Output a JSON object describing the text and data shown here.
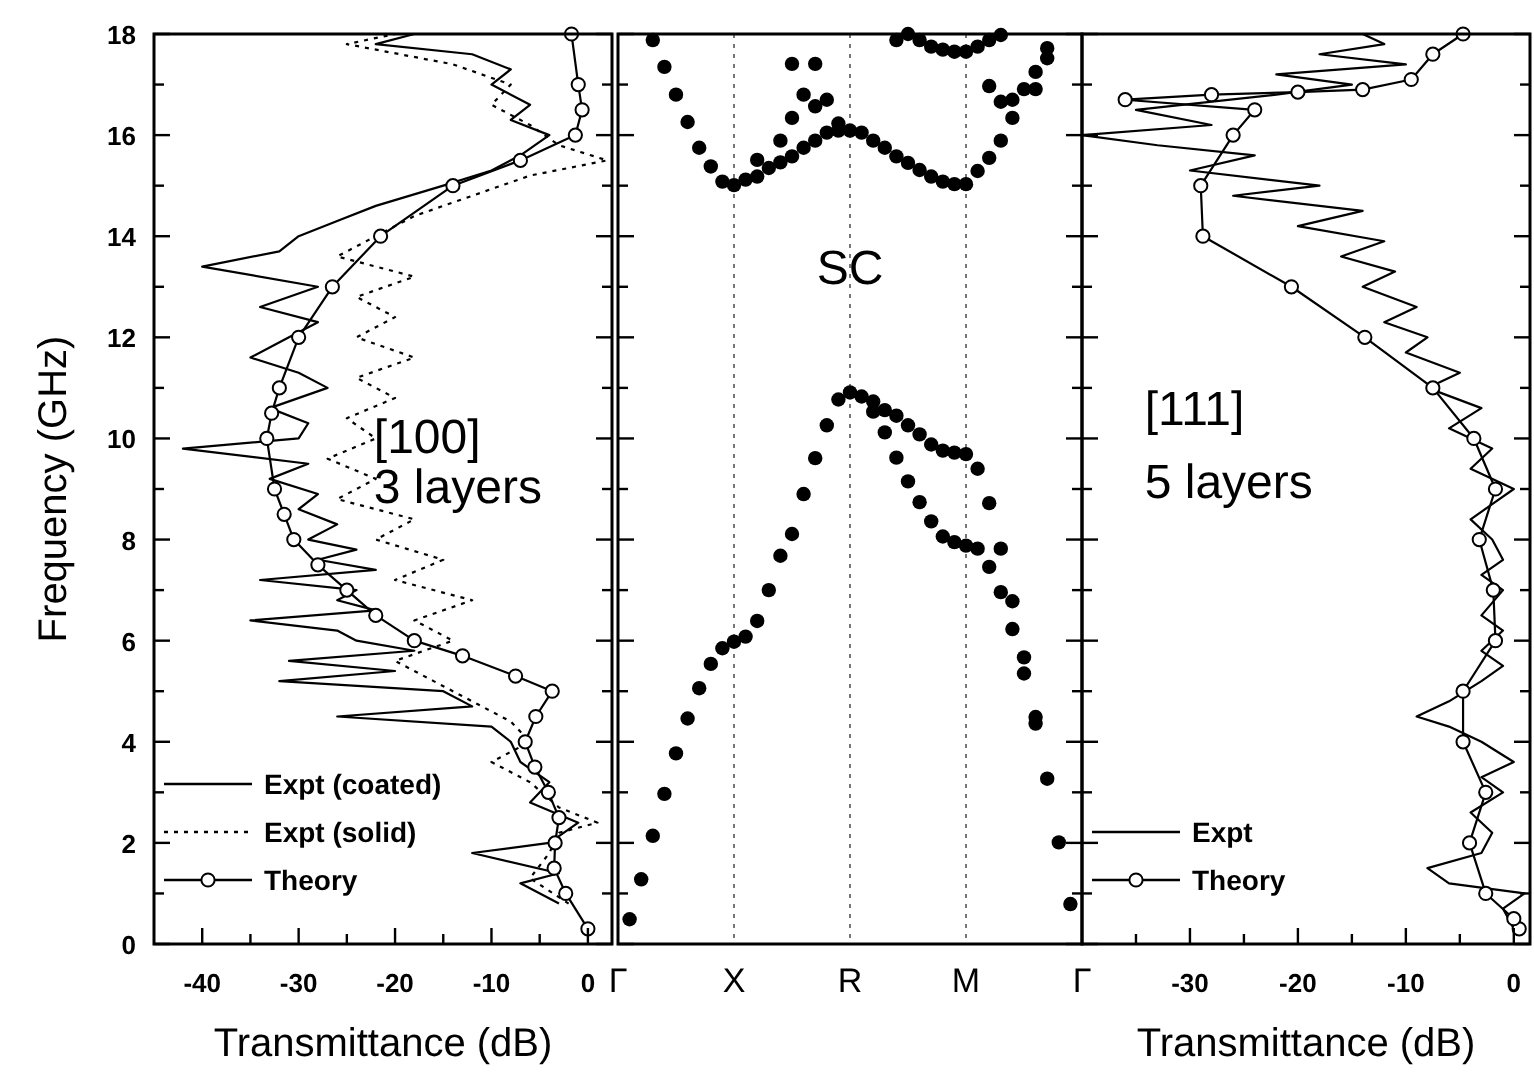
{
  "chart_data": [
    {
      "type": "line",
      "xlabel": "Transmittance (dB)",
      "ylabel": "Frequency (GHz)",
      "xlim": [
        -45,
        2.5
      ],
      "ylim": [
        0,
        18
      ],
      "xticks": [
        -40,
        {
          "value": -35,
          "label": null
        },
        -30,
        {
          "value": -25,
          "label": null
        },
        -20,
        {
          "value": -15,
          "label": null
        },
        -10,
        {
          "value": -5,
          "label": null
        },
        0
      ],
      "yticks": [
        0,
        {
          "value": 1,
          "label": null
        },
        2,
        {
          "value": 3,
          "label": null
        },
        4,
        {
          "value": 5,
          "label": null
        },
        6,
        {
          "value": 7,
          "label": null
        },
        8,
        {
          "value": 9,
          "label": null
        },
        10,
        {
          "value": 11,
          "label": null
        },
        12,
        {
          "value": 13,
          "label": null
        },
        14,
        {
          "value": 15,
          "label": null
        },
        16,
        {
          "value": 17,
          "label": null
        },
        18
      ],
      "annotations": [
        "[100]",
        "3 layers"
      ],
      "legend": "bottom left",
      "series": [
        {
          "name": "Expt (coated)",
          "color": "#000000",
          "line_style": "solid",
          "x": [
            -3,
            -7,
            -3,
            -12,
            -4,
            -1,
            -6,
            -4,
            -7,
            -8,
            -10,
            -26,
            -12,
            -15,
            -32,
            -20,
            -31,
            -18,
            -24,
            -26,
            -35,
            -22,
            -26,
            -24,
            -34,
            -22,
            -28,
            -24,
            -29,
            -26,
            -30,
            -28,
            -33,
            -29,
            -42,
            -30,
            -29,
            -33,
            -27,
            -30,
            -35,
            -31,
            -28,
            -34,
            -28,
            -40,
            -32,
            -30,
            -26,
            -22,
            -15,
            -10,
            -7,
            -4,
            -8,
            -6,
            -10,
            -8,
            -12,
            -22,
            -18
          ],
          "values": [
            0.8,
            1.2,
            1.4,
            1.8,
            2.0,
            2.4,
            2.8,
            3.2,
            3.6,
            4.0,
            4.3,
            4.5,
            4.7,
            5.0,
            5.2,
            5.4,
            5.6,
            5.8,
            6.0,
            6.2,
            6.4,
            6.6,
            6.8,
            7.0,
            7.2,
            7.4,
            7.6,
            7.8,
            8.0,
            8.3,
            8.6,
            8.9,
            9.2,
            9.5,
            9.8,
            10.0,
            10.3,
            10.6,
            11.0,
            11.3,
            11.6,
            12.0,
            12.3,
            12.6,
            13.0,
            13.4,
            13.7,
            14.0,
            14.3,
            14.6,
            15.0,
            15.3,
            15.6,
            16.0,
            16.3,
            16.6,
            17.0,
            17.3,
            17.6,
            17.8,
            18.0
          ]
        },
        {
          "name": "Expt (solid)",
          "color": "#000000",
          "line_style": "dotted",
          "x": [
            -2,
            -6,
            -4,
            -3,
            1,
            -3,
            -6,
            -10,
            -6,
            -8,
            -12,
            -16,
            -20,
            -14,
            -18,
            -12,
            -20,
            -15,
            -22,
            -18,
            -26,
            -22,
            -27,
            -22,
            -25,
            -20,
            -24,
            -18,
            -24,
            -20,
            -24,
            -18,
            -26,
            -22,
            -18,
            -12,
            -6,
            2,
            -3,
            -6,
            -10,
            -8,
            -14,
            -25,
            -20
          ],
          "values": [
            0.8,
            1.3,
            1.8,
            2.2,
            2.4,
            2.7,
            3.2,
            3.6,
            4.0,
            4.4,
            4.8,
            5.2,
            5.6,
            6.0,
            6.4,
            6.8,
            7.2,
            7.6,
            8.0,
            8.4,
            8.8,
            9.2,
            9.6,
            10.0,
            10.4,
            10.8,
            11.2,
            11.6,
            12.0,
            12.4,
            12.8,
            13.2,
            13.6,
            14.0,
            14.4,
            14.8,
            15.2,
            15.5,
            15.8,
            16.2,
            16.6,
            17.0,
            17.4,
            17.8,
            18.0
          ]
        },
        {
          "name": "Theory",
          "color": "#000000",
          "line_style": "solid",
          "marker": "circle",
          "x": [
            0,
            -2.3,
            -3.5,
            -3.4,
            -3,
            -4.1,
            -5.5,
            -6.5,
            -5.4,
            -3.7,
            -7.5,
            -13,
            -18,
            -22,
            -25,
            -28,
            -30.5,
            -31.5,
            -32.5,
            -33.3,
            -32.8,
            -32,
            -30,
            -26.5,
            -21.5,
            -14,
            -7,
            -1.3,
            -0.6,
            -1,
            -1.7
          ],
          "values": [
            0.3,
            1,
            1.5,
            2,
            2.5,
            3,
            3.5,
            4,
            4.5,
            5,
            5.3,
            5.7,
            6,
            6.5,
            7,
            7.5,
            8,
            8.5,
            9,
            10,
            10.5,
            11,
            12,
            13,
            14,
            15,
            15.5,
            16,
            16.5,
            17,
            18
          ]
        }
      ]
    },
    {
      "type": "scatter",
      "ylim": [
        0,
        18
      ],
      "tick_labels": "x",
      "categories": [
        "Γ",
        null,
        null,
        null,
        null,
        null,
        null,
        null,
        null,
        null,
        "X",
        null,
        null,
        null,
        null,
        null,
        null,
        null,
        null,
        null,
        "R",
        null,
        null,
        null,
        null,
        null,
        null,
        null,
        null,
        null,
        "M",
        null,
        null,
        null,
        null,
        null,
        null,
        null,
        null,
        null,
        "Γ"
      ],
      "yticks": [
        0,
        {
          "value": 1,
          "label": null
        },
        2,
        {
          "value": 3,
          "label": null
        },
        4,
        {
          "value": 5,
          "label": null
        },
        6,
        {
          "value": 7,
          "label": null
        },
        8,
        {
          "value": 9,
          "label": null
        },
        10,
        {
          "value": 11,
          "label": null
        },
        12,
        {
          "value": 13,
          "label": null
        },
        14,
        {
          "value": 15,
          "label": null
        },
        16,
        {
          "value": 17,
          "label": null
        },
        18
      ],
      "annotations": [
        "SC"
      ],
      "ref_lines": [
        {
          "axis": "x",
          "value": "X",
          "color": "#555555",
          "line_style": "dotted"
        },
        {
          "axis": "x",
          "value": "R",
          "color": "#555555",
          "line_style": "dotted"
        },
        {
          "axis": "x",
          "value": "M",
          "color": "#555555",
          "line_style": "dotted"
        }
      ],
      "series": [
        {
          "color": "#000000",
          "values": [
            null,
            0.49,
            1.28,
            2.14,
            2.97,
            3.77,
            4.46,
            5.06,
            5.54,
            5.85,
            5.98,
            6.08,
            6.39,
            7.0,
            7.68,
            8.11,
            8.9,
            9.61,
            10.26,
            10.77,
            10.91,
            null,
            10.53,
            10.12,
            9.62,
            9.15,
            8.74,
            8.36,
            8.06,
            7.95,
            7.88,
            7.82,
            7.46,
            6.96,
            6.23,
            5.35,
            4.36,
            3.27,
            2.01,
            0.79,
            null
          ]
        },
        {
          "color": "#000000",
          "values": [
            null,
            null,
            null,
            null,
            null,
            null,
            null,
            null,
            null,
            null,
            null,
            null,
            null,
            null,
            null,
            null,
            null,
            null,
            null,
            null,
            null,
            10.83,
            10.73,
            10.56,
            10.45,
            10.26,
            10.08,
            9.88,
            9.76,
            9.72,
            9.69,
            9.4,
            8.72,
            7.82,
            6.78,
            5.67,
            4.49,
            null,
            null,
            null,
            null
          ]
        },
        {
          "color": "#000000",
          "values": [
            null,
            null,
            null,
            17.88,
            17.35,
            16.8,
            16.26,
            15.75,
            15.38,
            15.08,
            15.01,
            null,
            15.18,
            15.35,
            15.46,
            15.58,
            15.75,
            15.89,
            16.05,
            16.09,
            16.09,
            16.05,
            15.89,
            15.75,
            15.58,
            15.45,
            15.31,
            15.18,
            15.08,
            15.03,
            15.03,
            15.29,
            15.55,
            15.89,
            16.34,
            null,
            null,
            null,
            null,
            null,
            null
          ]
        },
        {
          "color": "#000000",
          "values": [
            null,
            null,
            null,
            null,
            null,
            null,
            null,
            null,
            null,
            null,
            null,
            15.12,
            15.51,
            null,
            15.89,
            16.34,
            16.8,
            17.41,
            null,
            null,
            null,
            null,
            null,
            null,
            null,
            null,
            null,
            null,
            null,
            null,
            null,
            null,
            null,
            null,
            null,
            null,
            null,
            null,
            null,
            null,
            null
          ]
        },
        {
          "color": "#000000",
          "values": [
            null,
            null,
            null,
            null,
            null,
            null,
            null,
            null,
            null,
            null,
            null,
            null,
            null,
            null,
            null,
            17.41,
            null,
            16.57,
            16.7,
            16.23,
            null,
            null,
            null,
            null,
            null,
            null,
            null,
            null,
            null,
            null,
            null,
            null,
            null,
            null,
            null,
            null,
            null,
            null,
            null,
            null,
            null
          ]
        },
        {
          "color": "#000000",
          "values": [
            null,
            null,
            null,
            null,
            null,
            null,
            null,
            null,
            null,
            null,
            null,
            null,
            null,
            null,
            null,
            null,
            null,
            null,
            null,
            null,
            null,
            null,
            null,
            null,
            17.88,
            18.0,
            17.88,
            17.75,
            17.69,
            17.65,
            17.65,
            17.75,
            17.88,
            17.98,
            null,
            null,
            null,
            null,
            null,
            null,
            null
          ]
        },
        {
          "color": "#000000",
          "values": [
            null,
            null,
            null,
            null,
            null,
            null,
            null,
            null,
            null,
            null,
            null,
            null,
            null,
            null,
            null,
            null,
            null,
            null,
            null,
            null,
            null,
            null,
            null,
            null,
            null,
            null,
            null,
            null,
            null,
            null,
            null,
            null,
            16.97,
            16.66,
            16.7,
            16.91,
            16.91,
            17.52,
            null,
            null,
            null
          ]
        },
        {
          "color": "#000000",
          "values": [
            null,
            null,
            null,
            null,
            null,
            null,
            null,
            null,
            null,
            null,
            null,
            null,
            null,
            null,
            null,
            null,
            null,
            null,
            null,
            null,
            null,
            null,
            null,
            null,
            null,
            null,
            null,
            null,
            null,
            null,
            null,
            null,
            null,
            null,
            null,
            null,
            17.25,
            17.72,
            null,
            null,
            null
          ]
        }
      ]
    },
    {
      "type": "line",
      "xlabel": "Transmittance (dB)",
      "xlim": [
        -40,
        1.5
      ],
      "ylim": [
        0,
        18
      ],
      "tick_labels": "x",
      "xticks": [
        {
          "value": -35,
          "label": null
        },
        -30,
        {
          "value": -25,
          "label": null
        },
        -20,
        {
          "value": -15,
          "label": null
        },
        -10,
        {
          "value": -5,
          "label": null
        },
        0
      ],
      "yticks": [
        0,
        {
          "value": 1,
          "label": null
        },
        2,
        {
          "value": 3,
          "label": null
        },
        4,
        {
          "value": 5,
          "label": null
        },
        6,
        {
          "value": 7,
          "label": null
        },
        8,
        {
          "value": 9,
          "label": null
        },
        10,
        {
          "value": 11,
          "label": null
        },
        12,
        {
          "value": 13,
          "label": null
        },
        14,
        {
          "value": 15,
          "label": null
        },
        16,
        {
          "value": 17,
          "label": null
        },
        18
      ],
      "annotations": [
        "[111]",
        "5 layers"
      ],
      "legend": "bottom left",
      "series": [
        {
          "name": "Expt",
          "color": "#000000",
          "line_style": "solid",
          "x": [
            0,
            -1,
            1,
            -6,
            -8,
            -3,
            -2,
            -4,
            -1,
            -3,
            0,
            -3,
            -6,
            -9,
            -6,
            -3,
            -1,
            -3,
            -1,
            -3,
            -1,
            -3,
            -1,
            -2,
            -4,
            -2,
            0,
            -4,
            -2,
            -6,
            -3,
            -8,
            -5,
            -10,
            -8,
            -12,
            -9,
            -14,
            -11,
            -16,
            -12,
            -20,
            -14,
            -26,
            -18,
            -30,
            -24,
            -33,
            -40,
            -28,
            -35,
            -22,
            -15,
            -22,
            -10,
            -18,
            -12,
            -14
          ],
          "values": [
            0.3,
            0.7,
            1.0,
            1.2,
            1.5,
            1.8,
            2.2,
            2.6,
            3.0,
            3.3,
            3.6,
            4.0,
            4.3,
            4.5,
            4.8,
            5.2,
            5.5,
            5.8,
            6.2,
            6.5,
            7.0,
            7.3,
            7.6,
            8.0,
            8.4,
            8.7,
            9.0,
            9.4,
            9.8,
            10.2,
            10.6,
            11.0,
            11.3,
            11.7,
            12.0,
            12.3,
            12.6,
            13.0,
            13.3,
            13.6,
            13.9,
            14.2,
            14.5,
            14.8,
            15.0,
            15.3,
            15.6,
            15.8,
            16.0,
            16.2,
            16.5,
            16.8,
            17.0,
            17.2,
            17.4,
            17.6,
            17.8,
            18.0
          ]
        },
        {
          "name": "Theory",
          "color": "#000000",
          "line_style": "solid",
          "marker": "circle",
          "x": [
            0.5,
            0,
            -2.6,
            -4.1,
            -2.6,
            -4.7,
            -4.7,
            -1.7,
            -1.9,
            -3.2,
            -1.7,
            -3.7,
            -7.5,
            -13.8,
            -20.6,
            -28.8,
            -29,
            -26,
            -24,
            -36,
            -28,
            -20,
            -14,
            -9.5,
            -7.5,
            -4.7
          ],
          "values": [
            0.3,
            0.5,
            1,
            2,
            3,
            4,
            5,
            6,
            7,
            8,
            9,
            10,
            11,
            12,
            13,
            14,
            15,
            16,
            16.5,
            16.7,
            16.8,
            16.85,
            16.9,
            17.1,
            17.6,
            18
          ]
        }
      ]
    }
  ]
}
